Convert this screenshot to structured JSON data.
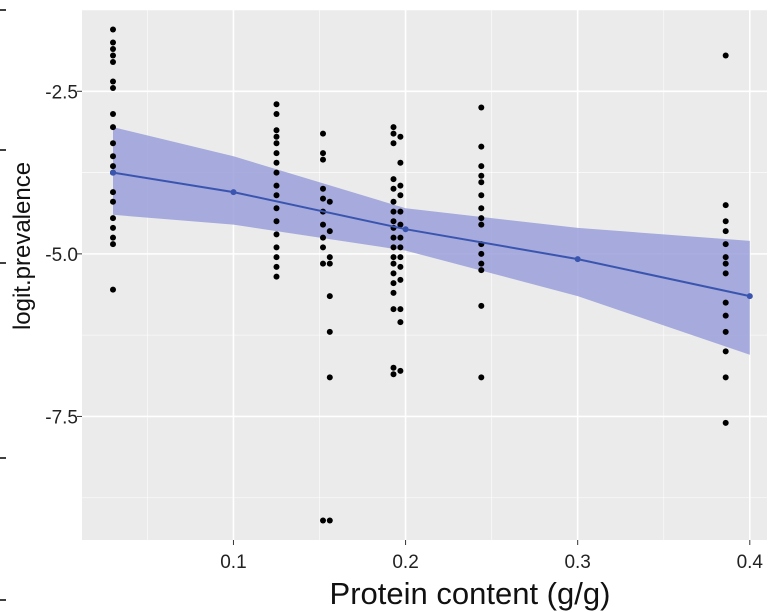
{
  "chart_data": {
    "type": "scatter",
    "title": "",
    "xlabel": "Protein content (g/g)",
    "ylabel": "logit.prevalence",
    "xlim": [
      0.012,
      0.41
    ],
    "ylim": [
      -9.4,
      -1.25
    ],
    "x_ticks": [
      0.1,
      0.2,
      0.3,
      0.4
    ],
    "x_tick_labels": [
      "0.1",
      "0.2",
      "0.3",
      "0.4"
    ],
    "y_ticks": [
      -2.5,
      -5.0,
      -7.5
    ],
    "y_tick_labels": [
      "-2.5",
      "-5.0",
      "-7.5"
    ],
    "grid": true,
    "colors": {
      "panel_background": "#ebebeb",
      "grid": "#ffffff",
      "points": "#000000",
      "fit_line": "#3a55b0",
      "confidence_band": "#9a9fd9"
    },
    "points": [
      {
        "x": 0.03,
        "y": -1.55
      },
      {
        "x": 0.03,
        "y": -1.75
      },
      {
        "x": 0.03,
        "y": -1.85
      },
      {
        "x": 0.03,
        "y": -1.95
      },
      {
        "x": 0.03,
        "y": -2.05
      },
      {
        "x": 0.03,
        "y": -2.35
      },
      {
        "x": 0.03,
        "y": -2.45
      },
      {
        "x": 0.03,
        "y": -2.85
      },
      {
        "x": 0.03,
        "y": -3.05
      },
      {
        "x": 0.03,
        "y": -3.3
      },
      {
        "x": 0.03,
        "y": -3.5
      },
      {
        "x": 0.03,
        "y": -3.65
      },
      {
        "x": 0.03,
        "y": -3.75
      },
      {
        "x": 0.03,
        "y": -4.05
      },
      {
        "x": 0.03,
        "y": -4.2
      },
      {
        "x": 0.03,
        "y": -4.45
      },
      {
        "x": 0.03,
        "y": -4.6
      },
      {
        "x": 0.03,
        "y": -4.75
      },
      {
        "x": 0.03,
        "y": -4.85
      },
      {
        "x": 0.03,
        "y": -5.55
      },
      {
        "x": 0.125,
        "y": -2.7
      },
      {
        "x": 0.125,
        "y": -2.85
      },
      {
        "x": 0.125,
        "y": -3.1
      },
      {
        "x": 0.125,
        "y": -3.2
      },
      {
        "x": 0.125,
        "y": -3.3
      },
      {
        "x": 0.125,
        "y": -3.45
      },
      {
        "x": 0.125,
        "y": -3.6
      },
      {
        "x": 0.125,
        "y": -3.75
      },
      {
        "x": 0.125,
        "y": -3.95
      },
      {
        "x": 0.125,
        "y": -4.1
      },
      {
        "x": 0.125,
        "y": -4.3
      },
      {
        "x": 0.125,
        "y": -4.5
      },
      {
        "x": 0.125,
        "y": -4.7
      },
      {
        "x": 0.125,
        "y": -4.9
      },
      {
        "x": 0.125,
        "y": -5.05
      },
      {
        "x": 0.125,
        "y": -5.2
      },
      {
        "x": 0.125,
        "y": -5.35
      },
      {
        "x": 0.152,
        "y": -3.15
      },
      {
        "x": 0.152,
        "y": -3.45
      },
      {
        "x": 0.152,
        "y": -3.55
      },
      {
        "x": 0.152,
        "y": -4.0
      },
      {
        "x": 0.152,
        "y": -4.15
      },
      {
        "x": 0.152,
        "y": -4.35
      },
      {
        "x": 0.152,
        "y": -4.55
      },
      {
        "x": 0.152,
        "y": -4.75
      },
      {
        "x": 0.152,
        "y": -4.9
      },
      {
        "x": 0.152,
        "y": -5.15
      },
      {
        "x": 0.152,
        "y": -9.1
      },
      {
        "x": 0.156,
        "y": -4.2
      },
      {
        "x": 0.156,
        "y": -4.65
      },
      {
        "x": 0.156,
        "y": -5.05
      },
      {
        "x": 0.156,
        "y": -5.15
      },
      {
        "x": 0.156,
        "y": -5.65
      },
      {
        "x": 0.156,
        "y": -6.2
      },
      {
        "x": 0.156,
        "y": -6.9
      },
      {
        "x": 0.156,
        "y": -9.1
      },
      {
        "x": 0.193,
        "y": -3.05
      },
      {
        "x": 0.193,
        "y": -3.15
      },
      {
        "x": 0.193,
        "y": -3.3
      },
      {
        "x": 0.193,
        "y": -3.85
      },
      {
        "x": 0.193,
        "y": -4.0
      },
      {
        "x": 0.193,
        "y": -4.2
      },
      {
        "x": 0.193,
        "y": -4.35
      },
      {
        "x": 0.193,
        "y": -4.5
      },
      {
        "x": 0.193,
        "y": -4.6
      },
      {
        "x": 0.193,
        "y": -4.75
      },
      {
        "x": 0.193,
        "y": -4.9
      },
      {
        "x": 0.193,
        "y": -5.05
      },
      {
        "x": 0.193,
        "y": -5.15
      },
      {
        "x": 0.193,
        "y": -5.3
      },
      {
        "x": 0.193,
        "y": -5.45
      },
      {
        "x": 0.193,
        "y": -5.6
      },
      {
        "x": 0.193,
        "y": -5.85
      },
      {
        "x": 0.193,
        "y": -6.75
      },
      {
        "x": 0.193,
        "y": -6.85
      },
      {
        "x": 0.197,
        "y": -3.2
      },
      {
        "x": 0.197,
        "y": -3.6
      },
      {
        "x": 0.197,
        "y": -3.95
      },
      {
        "x": 0.197,
        "y": -4.1
      },
      {
        "x": 0.197,
        "y": -4.35
      },
      {
        "x": 0.197,
        "y": -4.55
      },
      {
        "x": 0.197,
        "y": -4.75
      },
      {
        "x": 0.197,
        "y": -4.9
      },
      {
        "x": 0.197,
        "y": -5.05
      },
      {
        "x": 0.197,
        "y": -5.2
      },
      {
        "x": 0.197,
        "y": -5.4
      },
      {
        "x": 0.197,
        "y": -5.85
      },
      {
        "x": 0.197,
        "y": -6.05
      },
      {
        "x": 0.197,
        "y": -6.8
      },
      {
        "x": 0.244,
        "y": -2.75
      },
      {
        "x": 0.244,
        "y": -3.35
      },
      {
        "x": 0.244,
        "y": -3.65
      },
      {
        "x": 0.244,
        "y": -3.8
      },
      {
        "x": 0.244,
        "y": -3.9
      },
      {
        "x": 0.244,
        "y": -4.1
      },
      {
        "x": 0.244,
        "y": -4.3
      },
      {
        "x": 0.244,
        "y": -4.45
      },
      {
        "x": 0.244,
        "y": -4.55
      },
      {
        "x": 0.244,
        "y": -4.85
      },
      {
        "x": 0.244,
        "y": -5.0
      },
      {
        "x": 0.244,
        "y": -5.15
      },
      {
        "x": 0.244,
        "y": -5.25
      },
      {
        "x": 0.244,
        "y": -5.8
      },
      {
        "x": 0.244,
        "y": -6.9
      },
      {
        "x": 0.386,
        "y": -1.95
      },
      {
        "x": 0.386,
        "y": -4.25
      },
      {
        "x": 0.386,
        "y": -4.5
      },
      {
        "x": 0.386,
        "y": -4.65
      },
      {
        "x": 0.386,
        "y": -4.85
      },
      {
        "x": 0.386,
        "y": -5.05
      },
      {
        "x": 0.386,
        "y": -5.15
      },
      {
        "x": 0.386,
        "y": -5.3
      },
      {
        "x": 0.386,
        "y": -5.75
      },
      {
        "x": 0.386,
        "y": -5.95
      },
      {
        "x": 0.386,
        "y": -6.2
      },
      {
        "x": 0.386,
        "y": -6.5
      },
      {
        "x": 0.386,
        "y": -6.9
      },
      {
        "x": 0.386,
        "y": -7.6
      }
    ],
    "fit": {
      "x": [
        0.03,
        0.1,
        0.2,
        0.3,
        0.4
      ],
      "y": [
        -3.75,
        -4.05,
        -4.62,
        -5.08,
        -5.65
      ],
      "lower": [
        -4.4,
        -4.55,
        -4.95,
        -5.65,
        -6.55
      ],
      "upper": [
        -3.05,
        -3.5,
        -4.3,
        -4.6,
        -4.8
      ],
      "marker_x": [
        0.03,
        0.1,
        0.2,
        0.3,
        0.4
      ]
    }
  }
}
